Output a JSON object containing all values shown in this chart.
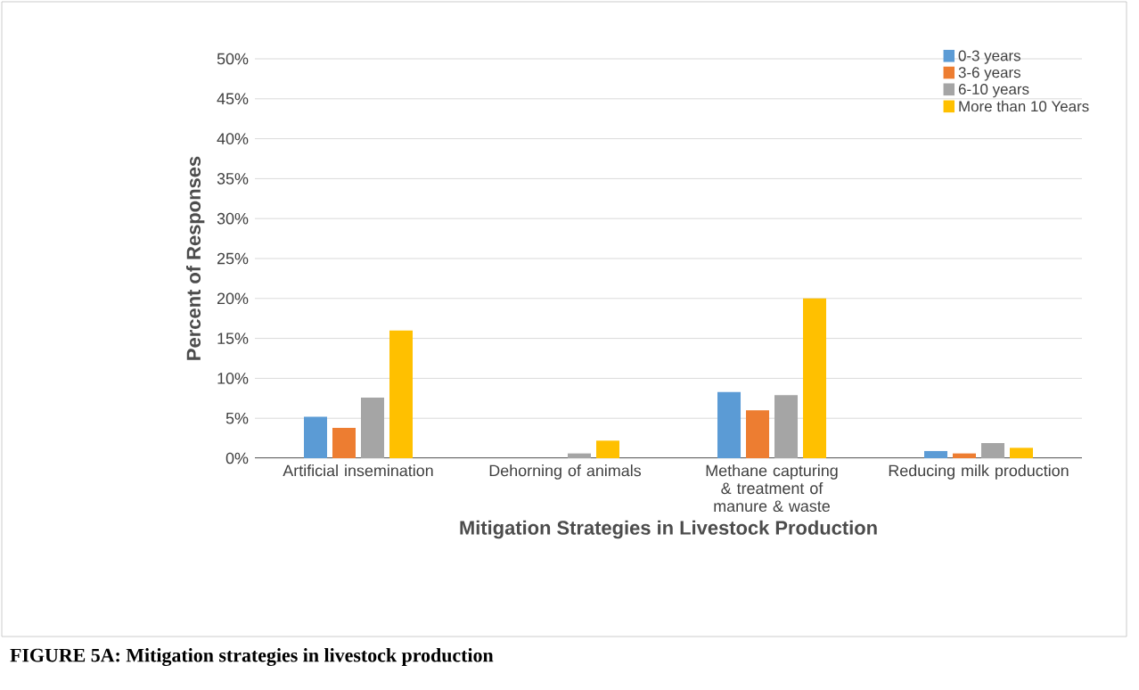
{
  "chart_data": {
    "type": "bar",
    "xlabel": "Mitigation Strategies in Livestock Production",
    "ylabel": "Percent of Responses",
    "categories": [
      "Artificial insemination",
      "Dehorning of animals",
      "Methane capturing & treatment of manure & waste",
      "Reducing milk production"
    ],
    "series": [
      {
        "name": "0-3 years",
        "color": "#5b9bd5",
        "values": [
          5.2,
          0,
          8.3,
          0.9
        ]
      },
      {
        "name": "3-6 years",
        "color": "#ed7d31",
        "values": [
          3.8,
          0,
          6.0,
          0.6
        ]
      },
      {
        "name": "6-10 years",
        "color": "#a5a5a5",
        "values": [
          7.6,
          0.6,
          7.9,
          1.9
        ]
      },
      {
        "name": "More than 10 Years",
        "color": "#ffc000",
        "values": [
          16,
          2.2,
          20,
          1.3
        ]
      }
    ],
    "ylim": [
      0,
      50
    ],
    "yticks": [
      {
        "value": 0,
        "label": "0%"
      },
      {
        "value": 5,
        "label": "5%"
      },
      {
        "value": 10,
        "label": "10%"
      },
      {
        "value": 15,
        "label": "15%"
      },
      {
        "value": 20,
        "label": "20%"
      },
      {
        "value": 25,
        "label": "25%"
      },
      {
        "value": 30,
        "label": "30%"
      },
      {
        "value": 35,
        "label": "35%"
      },
      {
        "value": 40,
        "label": "40%"
      },
      {
        "value": 45,
        "label": "45%"
      },
      {
        "value": 50,
        "label": "50%"
      }
    ],
    "grid": "y",
    "legend": "top right",
    "annotations": [
      "FIGURE 5A: Mitigation strategies in livestock production"
    ]
  }
}
